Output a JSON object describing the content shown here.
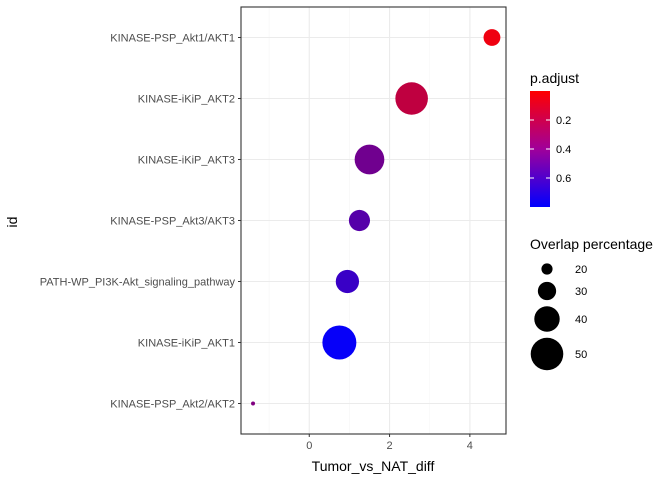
{
  "chart_data": {
    "type": "scatter",
    "xlabel": "Tumor_vs_NAT_diff",
    "ylabel": "id",
    "xlim": [
      -1.7,
      4.9
    ],
    "x_ticks": [
      0,
      2,
      4
    ],
    "grid": true,
    "legend_placement": "right",
    "categories": [
      "KINASE-PSP_Akt1/AKT1",
      "KINASE-iKiP_AKT2",
      "KINASE-iKiP_AKT3",
      "KINASE-PSP_Akt3/AKT3",
      "PATH-WP_PI3K-Akt_signaling_pathway",
      "KINASE-iKiP_AKT1",
      "KINASE-PSP_Akt2/AKT2"
    ],
    "points": [
      {
        "id": "KINASE-PSP_Akt1/AKT1",
        "x": 4.55,
        "p_adjust": 0.05,
        "overlap": 28
      },
      {
        "id": "KINASE-iKiP_AKT2",
        "x": 2.55,
        "p_adjust": 0.2,
        "overlap": 50
      },
      {
        "id": "KINASE-iKiP_AKT3",
        "x": 1.5,
        "p_adjust": 0.45,
        "overlap": 46
      },
      {
        "id": "KINASE-PSP_Akt3/AKT3",
        "x": 1.25,
        "p_adjust": 0.53,
        "overlap": 34
      },
      {
        "id": "PATH-WP_PI3K-Akt_signaling_pathway",
        "x": 0.95,
        "p_adjust": 0.62,
        "overlap": 37
      },
      {
        "id": "KINASE-iKiP_AKT1",
        "x": 0.75,
        "p_adjust": 0.78,
        "overlap": 52
      },
      {
        "id": "KINASE-PSP_Akt2/AKT2",
        "x": -1.4,
        "p_adjust": 0.4,
        "overlap": 10
      }
    ],
    "color_legend": {
      "title": "p.adjust",
      "ticks": [
        "0.2",
        "0.4",
        "0.6"
      ],
      "low_color": "#ff0000",
      "high_color": "#0000ff",
      "range": [
        0.0,
        0.8
      ]
    },
    "size_legend": {
      "title": "Overlap percentage",
      "values": [
        20,
        30,
        40,
        50
      ]
    }
  }
}
